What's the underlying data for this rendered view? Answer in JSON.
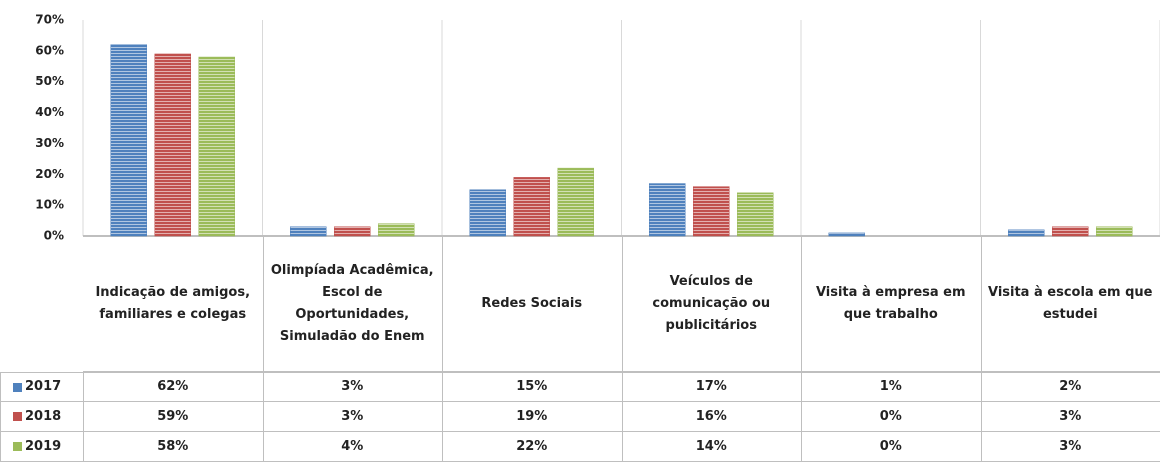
{
  "chart_data": {
    "type": "bar",
    "categories": [
      "Indicação de amigos, familiares e colegas",
      "Olimpíada Acadêmica, Escol de Oportunidades, Simuladão do Enem",
      "Redes Sociais",
      "Veículos de comunicação ou publicitários",
      "Visita à empresa em que trabalho",
      "Visita à escola em que estudei"
    ],
    "series": [
      {
        "name": "2017",
        "color": "#4f81bd",
        "values": [
          62,
          3,
          15,
          17,
          1,
          2
        ],
        "value_labels": [
          "62%",
          "3%",
          "15%",
          "17%",
          "1%",
          "2%"
        ]
      },
      {
        "name": "2018",
        "color": "#c0504d",
        "values": [
          59,
          3,
          19,
          16,
          0,
          3
        ],
        "value_labels": [
          "59%",
          "3%",
          "19%",
          "16%",
          "0%",
          "3%"
        ]
      },
      {
        "name": "2019",
        "color": "#9bbb59",
        "values": [
          58,
          4,
          22,
          14,
          0,
          3
        ],
        "value_labels": [
          "58%",
          "4%",
          "22%",
          "14%",
          "0%",
          "3%"
        ]
      }
    ],
    "ylim": [
      0,
      70
    ],
    "yticks": [
      {
        "value": 0,
        "label": "0%"
      },
      {
        "value": 10,
        "label": "10%"
      },
      {
        "value": 20,
        "label": "20%"
      },
      {
        "value": 30,
        "label": "30%"
      },
      {
        "value": 40,
        "label": "40%"
      },
      {
        "value": 50,
        "label": "50%"
      },
      {
        "value": 60,
        "label": "60%"
      },
      {
        "value": 70,
        "label": "70%"
      }
    ],
    "grid": false
  }
}
